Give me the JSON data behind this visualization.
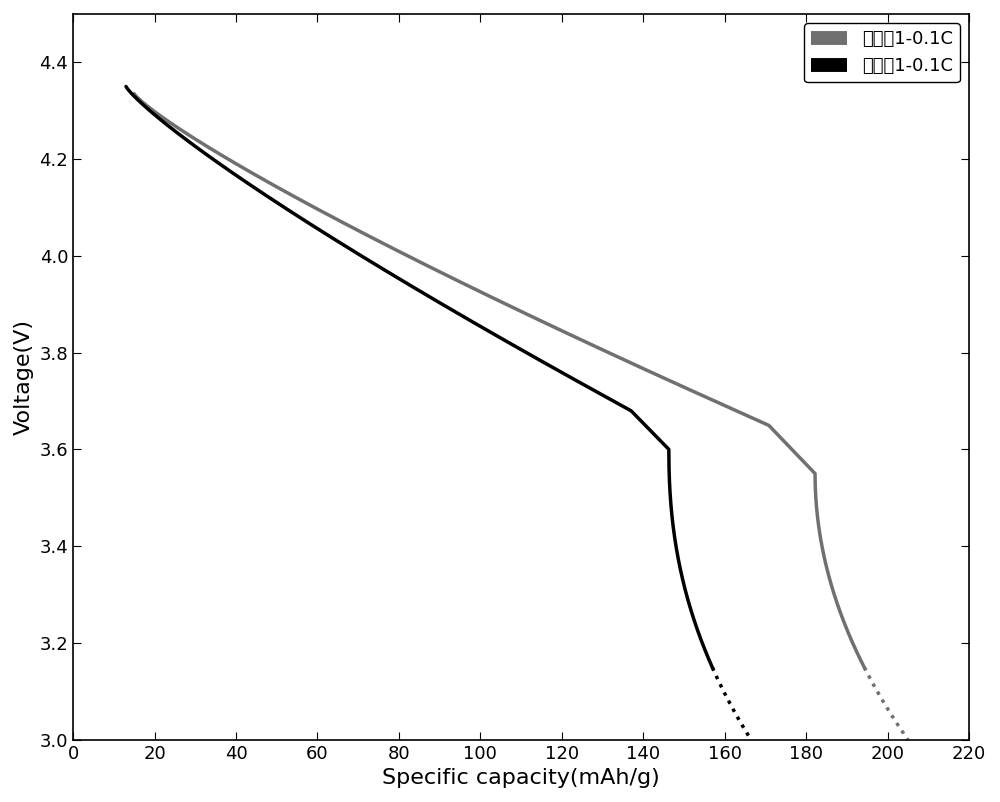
{
  "title": "",
  "xlabel": "Specific capacity(mAh/g)",
  "ylabel": "Voltage(V)",
  "xlim": [
    0,
    220
  ],
  "ylim": [
    3.0,
    4.5
  ],
  "xticks": [
    0,
    20,
    40,
    60,
    80,
    100,
    120,
    140,
    160,
    180,
    200,
    220
  ],
  "yticks": [
    3.0,
    3.2,
    3.4,
    3.6,
    3.8,
    4.0,
    4.2,
    4.4
  ],
  "legend1_label": "实施例1-0.1C",
  "legend2_label": "对比例1-0.1C",
  "color1": "#707070",
  "color2": "#000000",
  "background": "#ffffff",
  "linewidth": 2.5
}
